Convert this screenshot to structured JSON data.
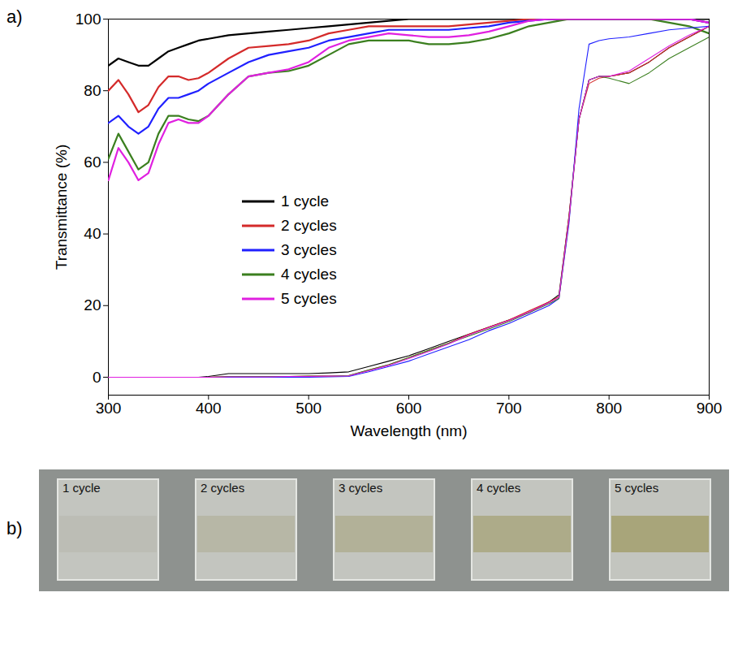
{
  "chart_data": {
    "type": "line",
    "x_label": "Wavelength (nm)",
    "y_label": "Transmittance (%)",
    "xlim": [
      300,
      900
    ],
    "xticks": [
      300,
      400,
      500,
      600,
      700,
      800,
      900
    ],
    "ylim": [
      -5,
      100
    ],
    "yticks": [
      0,
      20,
      40,
      60,
      80,
      100
    ],
    "legend": "center",
    "x": [
      300,
      310,
      320,
      330,
      340,
      350,
      360,
      370,
      380,
      390,
      400,
      420,
      440,
      460,
      480,
      500,
      520,
      540,
      560,
      580,
      600,
      620,
      640,
      660,
      680,
      700,
      720,
      740,
      750,
      760,
      770,
      780,
      790,
      800,
      820,
      840,
      860,
      880,
      900
    ],
    "series": [
      {
        "name": "1 cycle",
        "color": "#000000",
        "values": [
          87,
          89,
          88,
          87,
          87,
          89,
          91,
          92,
          93,
          94,
          94.5,
          95.5,
          96,
          96.5,
          97,
          97.5,
          98,
          98.5,
          99,
          99.5,
          100,
          100,
          100,
          100,
          100,
          100,
          100,
          100,
          100,
          100,
          100,
          100,
          100,
          100,
          100,
          100,
          100,
          100,
          100
        ]
      },
      {
        "name": "2 cycles",
        "color": "#d42a2a",
        "values": [
          80,
          83,
          79,
          74,
          76,
          81,
          84,
          84,
          83,
          83.5,
          85,
          89,
          92,
          92.5,
          93,
          94,
          96,
          97,
          98,
          98,
          98,
          98,
          98,
          98.5,
          99,
          99.5,
          100,
          100,
          100,
          100,
          100,
          100,
          100,
          100,
          100,
          100,
          100,
          100,
          99
        ]
      },
      {
        "name": "3 cycles",
        "color": "#2020ff",
        "values": [
          71,
          73,
          70,
          68,
          70,
          75,
          78,
          78,
          79,
          80,
          82,
          85,
          88,
          90,
          91,
          92,
          94,
          95,
          96,
          97,
          97,
          97,
          97,
          97.5,
          98,
          99,
          99.5,
          100,
          100,
          100,
          100,
          100,
          100,
          100,
          100,
          100,
          100,
          100,
          99
        ]
      },
      {
        "name": "4 cycles",
        "color": "#3b7f1f",
        "values": [
          61,
          68,
          63,
          58,
          60,
          68,
          73,
          73,
          72,
          71.5,
          73,
          79,
          84,
          85,
          85.5,
          87,
          90,
          93,
          94,
          94,
          94,
          93,
          93,
          93.5,
          94.5,
          96,
          98,
          99,
          99.5,
          100,
          100,
          100,
          100,
          100,
          100,
          100,
          99,
          98,
          96
        ]
      },
      {
        "name": "5 cycles",
        "color": "#e020e0",
        "values": [
          55,
          64,
          60,
          55,
          57,
          65,
          71,
          72,
          71,
          71,
          73,
          79,
          84,
          85,
          86,
          88,
          92,
          94,
          95,
          96,
          95.5,
          95,
          95,
          95.5,
          96.5,
          98,
          99.5,
          100,
          100,
          100,
          100,
          100,
          100,
          100,
          100,
          100,
          100,
          100,
          99
        ]
      },
      {
        "color": "#000000",
        "values": [
          0,
          0,
          0,
          0,
          0,
          0,
          0,
          0,
          0,
          0,
          0.2,
          1,
          1,
          1,
          1,
          1,
          1.2,
          1.5,
          3,
          4.5,
          6,
          8,
          10,
          12,
          14,
          16,
          18,
          21,
          23,
          45,
          72,
          83,
          84,
          84,
          85,
          88,
          92,
          95,
          98
        ]
      },
      {
        "color": "#d42a2a",
        "values": [
          0,
          0,
          0,
          0,
          0,
          0,
          0,
          0,
          0,
          0,
          0,
          0.2,
          0.2,
          0.2,
          0.2,
          0.3,
          0.3,
          0.4,
          2,
          3.5,
          5.5,
          7.5,
          9.5,
          12,
          14,
          16,
          18.5,
          21,
          22.5,
          45,
          72,
          82,
          83.5,
          84,
          85,
          88,
          92,
          95,
          98
        ]
      },
      {
        "color": "#2020ff",
        "values": [
          0,
          0,
          0,
          0,
          0,
          0,
          0,
          0,
          0,
          0,
          0,
          0,
          0,
          0,
          0,
          0,
          0.1,
          0.2,
          1.5,
          3,
          4.5,
          6.5,
          8.5,
          10.5,
          13,
          15,
          17.5,
          20,
          22,
          43,
          75,
          93,
          94,
          94.5,
          95,
          96,
          97,
          97.5,
          98
        ]
      },
      {
        "color": "#3b7f1f",
        "values": [
          0,
          0,
          0,
          0,
          0,
          0,
          0,
          0,
          0,
          0,
          0,
          0.2,
          0.2,
          0.2,
          0.2,
          0.3,
          0.3,
          0.5,
          2,
          3.5,
          5.5,
          7.5,
          9.5,
          11.5,
          13.5,
          15.5,
          18,
          20.5,
          22,
          44,
          72,
          83,
          84,
          83.5,
          82,
          85,
          89,
          92,
          95
        ]
      },
      {
        "color": "#e020e0",
        "values": [
          0,
          0,
          0,
          0,
          0,
          0,
          0,
          0,
          0,
          0,
          0,
          0.1,
          0.1,
          0.1,
          0.2,
          0.2,
          0.3,
          0.4,
          1.8,
          3.3,
          5.2,
          7.2,
          9.3,
          11.8,
          13.8,
          15.8,
          18.2,
          20.8,
          22.3,
          44,
          72,
          83,
          84,
          84,
          85.5,
          89,
          92.5,
          95.5,
          98
        ]
      }
    ]
  },
  "panel_labels": [
    "a)",
    "b)"
  ],
  "photo": {
    "labels": [
      "1 cycle",
      "2 cycles",
      "3 cycles",
      "4 cycles",
      "5 cycles"
    ]
  }
}
